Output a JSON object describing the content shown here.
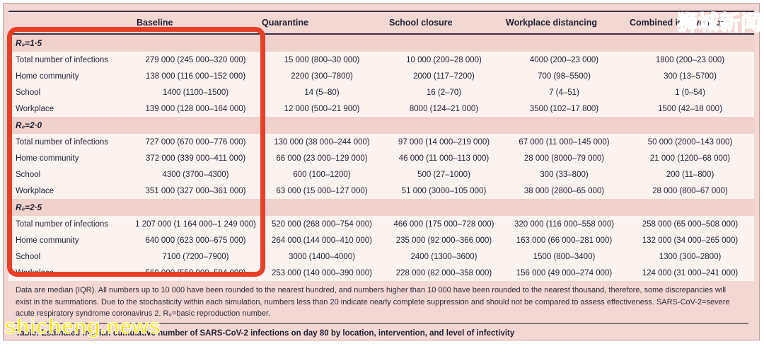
{
  "table": {
    "columns": [
      "",
      "Baseline",
      "Quarantine",
      "School closure",
      "Workplace distancing",
      "Combined intervention"
    ],
    "sections": [
      {
        "title": "R₀=1·5",
        "rows": [
          {
            "label": "Total number of infections",
            "values": [
              "279 000 (245 000–320 000)",
              "15 000 (800–30 000)",
              "10 000 (200–28 000)",
              "4000 (200–23 000)",
              "1800 (200–23 000)"
            ]
          },
          {
            "label": "Home community",
            "values": [
              "138 000 (116 000–152 000)",
              "2200 (300–7800)",
              "2000 (117–7200)",
              "700 (98–5500)",
              "300 (13–5700)"
            ]
          },
          {
            "label": "School",
            "values": [
              "1400 (1100–1500)",
              "14 (5–80)",
              "16 (2–70)",
              "7 (4–51)",
              "1 (0–54)"
            ]
          },
          {
            "label": "Workplace",
            "values": [
              "139 000 (128 000–164 000)",
              "12 000 (500–21 900)",
              "8000 (124–21 000)",
              "3500 (102–17 800)",
              "1500 (42–18 000)"
            ]
          }
        ]
      },
      {
        "title": "R₀=2·0",
        "rows": [
          {
            "label": "Total number of infections",
            "values": [
              "727 000 (670 000–776 000)",
              "130 000 (38 000–244 000)",
              "97 000 (14 000–219 000)",
              "67 000 (11 000–145 000)",
              "50 000 (2000–143 000)"
            ]
          },
          {
            "label": "Home community",
            "values": [
              "372 000 (339 000–411 000)",
              "66 000 (23 000–129 000)",
              "46 000 (11 000–113 000)",
              "28 000 (8000–79 000)",
              "21 000 (1200–68 000)"
            ]
          },
          {
            "label": "School",
            "values": [
              "4300 (3700–4300)",
              "600 (100–1200)",
              "500 (27–1000)",
              "300 (33–800)",
              "200 (11–800)"
            ]
          },
          {
            "label": "Workplace",
            "values": [
              "351 000 (327 000–361 000)",
              "63 000 (15 000–127 000)",
              "51 000 (3000–105 000)",
              "38 000 (2800–65 000)",
              "28 000 (800–67 000)"
            ]
          }
        ]
      },
      {
        "title": "R₀=2·5",
        "rows": [
          {
            "label": "Total number of infections",
            "values": [
              "1 207 000 (1 164 000–1 249 000)",
              "520 000 (268 000–754 000)",
              "466 000 (175 000–728 000)",
              "320 000 (116 000–558 000)",
              "258 000 (65 000–508 000)"
            ]
          },
          {
            "label": "Home community",
            "values": [
              "640 000 (623 000–675 000)",
              "264 000 (144 000–410 000)",
              "235 000 (92 000–366 000)",
              "163 000 (66 000–281 000)",
              "132 000 (34 000–265 000)"
            ]
          },
          {
            "label": "School",
            "values": [
              "7100 (7200–7900)",
              "3000 (1400–4000)",
              "2400 (1300–3600)",
              "1500 (800–3400)",
              "1300 (300–2800)"
            ]
          },
          {
            "label": "Workplace",
            "values": [
              "560 000 (550 000–584 000)",
              "253 000 (140 000–390 000)",
              "228 000 (82 000–358 000)",
              "156 000 (49 000–274 000)",
              "124 000 (31 000–241 000)"
            ]
          }
        ]
      }
    ],
    "footnote": "Data are median (IQR). All numbers up to 10 000 have been rounded to the nearest hundred, and numbers higher than 10 000 have been rounded to the nearest thousand, therefore, some discrepancies will exist in the summations. Due to the stochasticity within each simulation, numbers less than 20 indicate nearly complete suppression and should not be compared to assess effectiveness. SARS-CoV-2=severe acute respiratory syndrome coronavirus 2. R₀=basic reproduction number.",
    "caption": "Table: Estimated median cumulative number of SARS-CoV-2 infections on day 80 by location, intervention, and level of infectivity"
  },
  "watermarks": {
    "top_right": "狮城新闻",
    "bottom_left": "shicheng.news"
  },
  "annotation": {
    "highlight_box_color": "#e83f28"
  },
  "colors": {
    "panel_pink": "#f3d7d2",
    "band_pink": "#f0d1cb",
    "row_white": "#fcf3f0",
    "watermark_yellow": "#ffe602",
    "text_dark": "#1f1f33"
  }
}
